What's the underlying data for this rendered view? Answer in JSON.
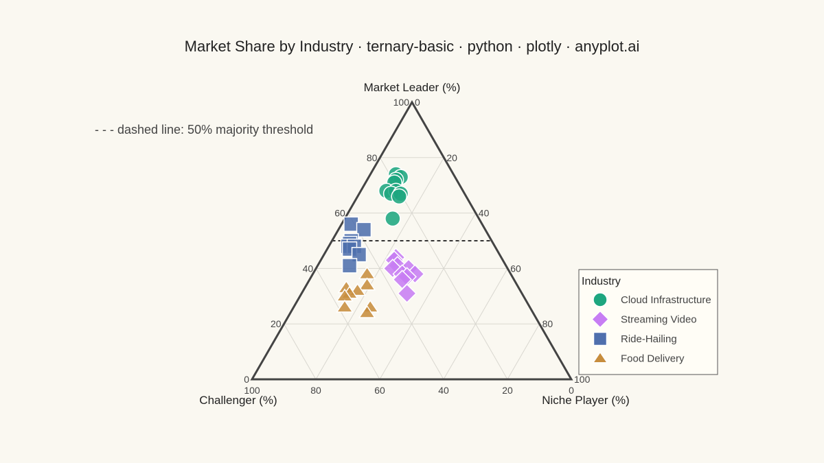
{
  "chart_data": {
    "type": "scatter",
    "subtype": "ternary",
    "title": "Market Share by Industry · ternary-basic · python · plotly · anyplot.ai",
    "annotation": "- - - dashed line: 50% majority threshold",
    "axes": {
      "a": {
        "label": "Market Leader (%)",
        "range": [
          0,
          100
        ]
      },
      "b": {
        "label": "Challenger (%)",
        "range": [
          0,
          100
        ]
      },
      "c": {
        "label": "Niche Player (%)",
        "range": [
          0,
          100
        ]
      },
      "ticks": [
        0,
        20,
        40,
        60,
        80,
        100
      ],
      "grid": true
    },
    "threshold": {
      "axis": "a",
      "value": 50,
      "style": "dashed"
    },
    "legend": {
      "title": "Industry",
      "position": "right"
    },
    "series": [
      {
        "name": "Cloud Infrastructure",
        "marker": "circle",
        "color": "#1EA67F",
        "points": [
          {
            "a": 74,
            "b": 18,
            "c": 8
          },
          {
            "a": 73,
            "b": 17,
            "c": 10
          },
          {
            "a": 72,
            "b": 19,
            "c": 9
          },
          {
            "a": 71,
            "b": 20,
            "c": 9
          },
          {
            "a": 68,
            "b": 24,
            "c": 8
          },
          {
            "a": 68,
            "b": 21,
            "c": 11
          },
          {
            "a": 67,
            "b": 23,
            "c": 10
          },
          {
            "a": 67,
            "b": 20,
            "c": 13
          },
          {
            "a": 66,
            "b": 21,
            "c": 13
          },
          {
            "a": 58,
            "b": 27,
            "c": 15
          }
        ]
      },
      {
        "name": "Streaming Video",
        "marker": "diamond",
        "color": "#C77DF3",
        "points": [
          {
            "a": 44,
            "b": 33,
            "c": 23
          },
          {
            "a": 43,
            "b": 34,
            "c": 23
          },
          {
            "a": 41,
            "b": 34,
            "c": 25
          },
          {
            "a": 40,
            "b": 31,
            "c": 29
          },
          {
            "a": 40,
            "b": 36,
            "c": 24
          },
          {
            "a": 38,
            "b": 30,
            "c": 32
          },
          {
            "a": 38,
            "b": 34,
            "c": 28
          },
          {
            "a": 37,
            "b": 33,
            "c": 30
          },
          {
            "a": 36,
            "b": 35,
            "c": 29
          },
          {
            "a": 31,
            "b": 36,
            "c": 33
          }
        ]
      },
      {
        "name": "Ride-Hailing",
        "marker": "square",
        "color": "#4F6FAD",
        "points": [
          {
            "a": 56,
            "b": 41,
            "c": 3
          },
          {
            "a": 54,
            "b": 38,
            "c": 8
          },
          {
            "a": 50,
            "b": 44,
            "c": 6
          },
          {
            "a": 49,
            "b": 45,
            "c": 6
          },
          {
            "a": 48,
            "b": 46,
            "c": 6
          },
          {
            "a": 48,
            "b": 44,
            "c": 8
          },
          {
            "a": 47,
            "b": 46,
            "c": 7
          },
          {
            "a": 45,
            "b": 44,
            "c": 11
          },
          {
            "a": 41,
            "b": 49,
            "c": 10
          }
        ]
      },
      {
        "name": "Food Delivery",
        "marker": "triangle-up",
        "color": "#C78D3D",
        "points": [
          {
            "a": 38,
            "b": 45,
            "c": 17
          },
          {
            "a": 34,
            "b": 47,
            "c": 19
          },
          {
            "a": 33,
            "b": 54,
            "c": 13
          },
          {
            "a": 32,
            "b": 51,
            "c": 17
          },
          {
            "a": 31,
            "b": 54,
            "c": 15
          },
          {
            "a": 30,
            "b": 56,
            "c": 14
          },
          {
            "a": 26,
            "b": 58,
            "c": 16
          },
          {
            "a": 26,
            "b": 50,
            "c": 24
          },
          {
            "a": 24,
            "b": 52,
            "c": 24
          }
        ]
      }
    ]
  }
}
